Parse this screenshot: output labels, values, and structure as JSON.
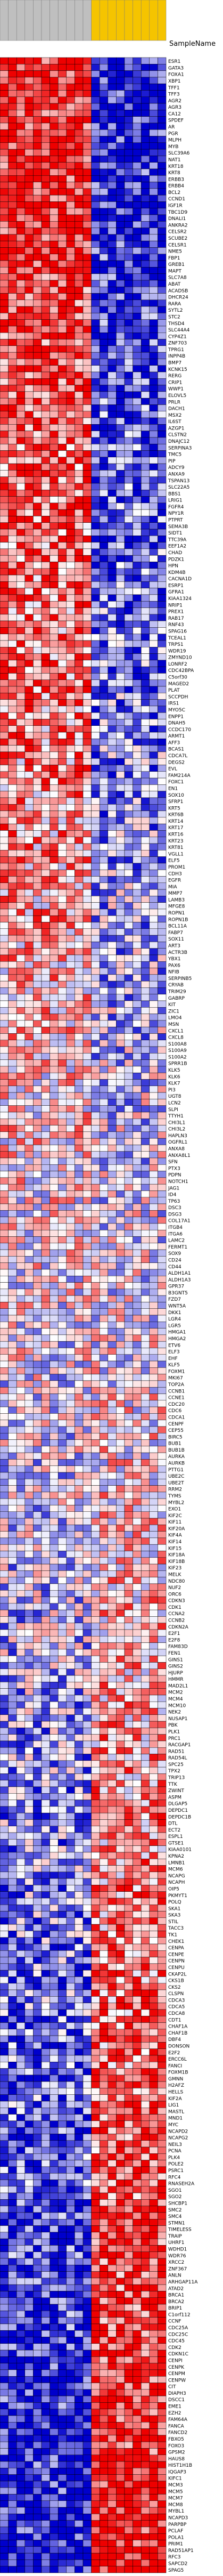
{
  "chart_data": {
    "type": "heatmap",
    "title": "",
    "header_label": "SampleName",
    "legend": "none",
    "grid": true,
    "colors": {
      "group_a_header": "#bfbfbf",
      "group_b_header": "#f5c400",
      "cell_border": "#000000",
      "low": "#0000cc",
      "mid": "#ffffff",
      "high": "#ee0000"
    },
    "columns": [
      "",
      "",
      "",
      "",
      "",
      "",
      "",
      "",
      "",
      "",
      "",
      "",
      "",
      "",
      "",
      "",
      "",
      "",
      "",
      ""
    ],
    "column_groups": [
      {
        "count": 11,
        "color": "#bfbfbf"
      },
      {
        "count": 9,
        "color": "#f5c400"
      }
    ],
    "rows": [
      {
        "label": "ESR1"
      },
      {
        "label": "GATA3"
      },
      {
        "label": "FOXA1"
      },
      {
        "label": "XBP1"
      },
      {
        "label": "TFF1"
      },
      {
        "label": "TFF3"
      },
      {
        "label": "AGR2"
      },
      {
        "label": "AGR3"
      },
      {
        "label": "CA12"
      },
      {
        "label": "SPDEF"
      },
      {
        "label": "AR"
      },
      {
        "label": "PGR"
      },
      {
        "label": "MLPH"
      },
      {
        "label": "MYB"
      },
      {
        "label": "SLC39A6"
      },
      {
        "label": "NAT1"
      },
      {
        "label": "KRT18"
      },
      {
        "label": "KRT8"
      },
      {
        "label": "ERBB3"
      },
      {
        "label": "ERBB4"
      },
      {
        "label": "BCL2"
      },
      {
        "label": "CCND1"
      },
      {
        "label": "IGF1R"
      },
      {
        "label": "TBC1D9"
      },
      {
        "label": "DNALI1"
      },
      {
        "label": "ANKRA2"
      },
      {
        "label": "CELSR2"
      },
      {
        "label": "SCUBE2"
      },
      {
        "label": "CELSR1"
      },
      {
        "label": "NME5"
      },
      {
        "label": "FBP1"
      },
      {
        "label": "GREB1"
      },
      {
        "label": "MAPT"
      },
      {
        "label": "SLC7A8"
      },
      {
        "label": "ABAT"
      },
      {
        "label": "ACADSB"
      },
      {
        "label": "DHCR24"
      },
      {
        "label": "RARA"
      },
      {
        "label": "SYTL2"
      },
      {
        "label": "STC2"
      },
      {
        "label": "THSD4"
      },
      {
        "label": "SLC44A4"
      },
      {
        "label": "CYP4Z1"
      },
      {
        "label": "ZNF703"
      },
      {
        "label": "TPRG1"
      },
      {
        "label": "INPP4B"
      },
      {
        "label": "BMP7"
      },
      {
        "label": "KCNK15"
      },
      {
        "label": "RERG"
      },
      {
        "label": "CRIP1"
      },
      {
        "label": "WWP1"
      },
      {
        "label": "ELOVL5"
      },
      {
        "label": "PRLR"
      },
      {
        "label": "DACH1"
      },
      {
        "label": "MSX2"
      },
      {
        "label": "IL6ST"
      },
      {
        "label": "AZGP1"
      },
      {
        "label": "CLSTN2"
      },
      {
        "label": "DNAJC12"
      },
      {
        "label": "SERPINA3"
      },
      {
        "label": "TMC5"
      },
      {
        "label": "PIP"
      },
      {
        "label": "ADCY9"
      },
      {
        "label": "ANXA9"
      },
      {
        "label": "TSPAN13"
      },
      {
        "label": "SLC22A5"
      },
      {
        "label": "BBS1"
      },
      {
        "label": "LRIG1"
      },
      {
        "label": "FGFR4"
      },
      {
        "label": "NPY1R"
      },
      {
        "label": "PTPRT"
      },
      {
        "label": "SEMA3B"
      },
      {
        "label": "SIDT1"
      },
      {
        "label": "TTC39A"
      },
      {
        "label": "EEF1A2"
      },
      {
        "label": "CHAD"
      },
      {
        "label": "PDZK1"
      },
      {
        "label": "HPN"
      },
      {
        "label": "KDM4B"
      },
      {
        "label": "CACNA1D"
      },
      {
        "label": "ESRP1"
      },
      {
        "label": "GFRA1"
      },
      {
        "label": "KIAA1324"
      },
      {
        "label": "NRIP1"
      },
      {
        "label": "PREX1"
      },
      {
        "label": "RAB17"
      },
      {
        "label": "RNF43"
      },
      {
        "label": "SPAG16"
      },
      {
        "label": "TCEAL1"
      },
      {
        "label": "TRPS1"
      },
      {
        "label": "WDR19"
      },
      {
        "label": "ZMYND10"
      },
      {
        "label": "LONRF2"
      },
      {
        "label": "CDC42BPA"
      },
      {
        "label": "C5orf30"
      },
      {
        "label": "MAGED2"
      },
      {
        "label": "PLAT"
      },
      {
        "label": "SCCPDH"
      },
      {
        "label": "IRS1"
      },
      {
        "label": "MYO5C"
      },
      {
        "label": "ENPP1"
      },
      {
        "label": "DNAH5"
      },
      {
        "label": "CCDC170"
      },
      {
        "label": "ARMT1"
      },
      {
        "label": "AFF3"
      },
      {
        "label": "BCAS1"
      },
      {
        "label": "CDCA7L"
      },
      {
        "label": "DEGS2"
      },
      {
        "label": "EVL"
      },
      {
        "label": "FAM214A"
      },
      {
        "label": "FOXC1"
      },
      {
        "label": "EN1"
      },
      {
        "label": "SOX10"
      },
      {
        "label": "SFRP1"
      },
      {
        "label": "KRT5"
      },
      {
        "label": "KRT6B"
      },
      {
        "label": "KRT14"
      },
      {
        "label": "KRT17"
      },
      {
        "label": "KRT16"
      },
      {
        "label": "KRT23"
      },
      {
        "label": "KRT81"
      },
      {
        "label": "VGLL1"
      },
      {
        "label": "ELF5"
      },
      {
        "label": "PROM1"
      },
      {
        "label": "CDH3"
      },
      {
        "label": "EGFR"
      },
      {
        "label": "MIA"
      },
      {
        "label": "MMP7"
      },
      {
        "label": "LAMB3"
      },
      {
        "label": "MFGE8"
      },
      {
        "label": "ROPN1"
      },
      {
        "label": "ROPN1B"
      },
      {
        "label": "BCL11A"
      },
      {
        "label": "FABP7"
      },
      {
        "label": "SOX11"
      },
      {
        "label": "ART3"
      },
      {
        "label": "ACTR3B"
      },
      {
        "label": "YBX1"
      },
      {
        "label": "PAX6"
      },
      {
        "label": "NFIB"
      },
      {
        "label": "SERPINB5"
      },
      {
        "label": "CRYAB"
      },
      {
        "label": "TRIM29"
      },
      {
        "label": "GABRP"
      },
      {
        "label": "KIT"
      },
      {
        "label": "ZIC1"
      },
      {
        "label": "LMO4"
      },
      {
        "label": "MSN"
      },
      {
        "label": "CXCL1"
      },
      {
        "label": "CXCL8"
      },
      {
        "label": "S100A8"
      },
      {
        "label": "S100A9"
      },
      {
        "label": "S100A2"
      },
      {
        "label": "SPRR1B"
      },
      {
        "label": "KLK5"
      },
      {
        "label": "KLK6"
      },
      {
        "label": "KLK7"
      },
      {
        "label": "PI3"
      },
      {
        "label": "UGT8"
      },
      {
        "label": "LCN2"
      },
      {
        "label": "SLPI"
      },
      {
        "label": "TTYH1"
      },
      {
        "label": "CHI3L1"
      },
      {
        "label": "CHI3L2"
      },
      {
        "label": "HAPLN3"
      },
      {
        "label": "OGFRL1"
      },
      {
        "label": "ANXA8"
      },
      {
        "label": "ANXA8L1"
      },
      {
        "label": "SFN"
      },
      {
        "label": "PTX3"
      },
      {
        "label": "PDPN"
      },
      {
        "label": "NOTCH1"
      },
      {
        "label": "JAG1"
      },
      {
        "label": "ID4"
      },
      {
        "label": "TP63"
      },
      {
        "label": "DSC3"
      },
      {
        "label": "DSG3"
      },
      {
        "label": "COL17A1"
      },
      {
        "label": "ITGB4"
      },
      {
        "label": "ITGA6"
      },
      {
        "label": "LAMC2"
      },
      {
        "label": "FERMT1"
      },
      {
        "label": "SOX9"
      },
      {
        "label": "CD24"
      },
      {
        "label": "CD44"
      },
      {
        "label": "ALDH1A1"
      },
      {
        "label": "ALDH1A3"
      },
      {
        "label": "GPR37"
      },
      {
        "label": "B3GNT5"
      },
      {
        "label": "FZD7"
      },
      {
        "label": "WNT5A"
      },
      {
        "label": "DKK1"
      },
      {
        "label": "LGR4"
      },
      {
        "label": "LGR5"
      },
      {
        "label": "HMGA1"
      },
      {
        "label": "HMGA2"
      },
      {
        "label": "ETV6"
      },
      {
        "label": "ELF3"
      },
      {
        "label": "EHF"
      },
      {
        "label": "KLF5"
      },
      {
        "label": "FOXM1"
      },
      {
        "label": "MKI67"
      },
      {
        "label": "TOP2A"
      },
      {
        "label": "CCNB1"
      },
      {
        "label": "CCNE1"
      },
      {
        "label": "CDC20"
      },
      {
        "label": "CDC6"
      },
      {
        "label": "CDCA1"
      },
      {
        "label": "CENPF"
      },
      {
        "label": "CEP55"
      },
      {
        "label": "BIRC5"
      },
      {
        "label": "BUB1"
      },
      {
        "label": "BUB1B"
      },
      {
        "label": "AURKA"
      },
      {
        "label": "AURKB"
      },
      {
        "label": "PTTG1"
      },
      {
        "label": "UBE2C"
      },
      {
        "label": "UBE2T"
      },
      {
        "label": "RRM2"
      },
      {
        "label": "TYMS"
      },
      {
        "label": "MYBL2"
      },
      {
        "label": "EXO1"
      },
      {
        "label": "KIF2C"
      },
      {
        "label": "KIF11"
      },
      {
        "label": "KIF20A"
      },
      {
        "label": "KIF4A"
      },
      {
        "label": "KIF14"
      },
      {
        "label": "KIF15"
      },
      {
        "label": "KIF18A"
      },
      {
        "label": "KIF18B"
      },
      {
        "label": "KIF23"
      },
      {
        "label": "MELK"
      },
      {
        "label": "NDC80"
      },
      {
        "label": "NUF2"
      },
      {
        "label": "ORC6"
      },
      {
        "label": "CDKN3"
      },
      {
        "label": "CDK1"
      },
      {
        "label": "CCNA2"
      },
      {
        "label": "CCNB2"
      },
      {
        "label": "CDKN2A"
      },
      {
        "label": "E2F1"
      },
      {
        "label": "E2F8"
      },
      {
        "label": "FAM83D"
      },
      {
        "label": "FEN1"
      },
      {
        "label": "GINS1"
      },
      {
        "label": "GINS2"
      },
      {
        "label": "HJURP"
      },
      {
        "label": "HMMR"
      },
      {
        "label": "MAD2L1"
      },
      {
        "label": "MCM2"
      },
      {
        "label": "MCM4"
      },
      {
        "label": "MCM10"
      },
      {
        "label": "NEK2"
      },
      {
        "label": "NUSAP1"
      },
      {
        "label": "PBK"
      },
      {
        "label": "PLK1"
      },
      {
        "label": "PRC1"
      },
      {
        "label": "RACGAP1"
      },
      {
        "label": "RAD51"
      },
      {
        "label": "RAD54L"
      },
      {
        "label": "SPC25"
      },
      {
        "label": "TPX2"
      },
      {
        "label": "TRIP13"
      },
      {
        "label": "TTK"
      },
      {
        "label": "ZWINT"
      },
      {
        "label": "ASPM"
      },
      {
        "label": "DLGAP5"
      },
      {
        "label": "DEPDC1"
      },
      {
        "label": "DEPDC1B"
      },
      {
        "label": "DTL"
      },
      {
        "label": "ECT2"
      },
      {
        "label": "ESPL1"
      },
      {
        "label": "GTSE1"
      },
      {
        "label": "KIAA0101"
      },
      {
        "label": "KPNA2"
      },
      {
        "label": "LMNB1"
      },
      {
        "label": "MCM6"
      },
      {
        "label": "NCAPG"
      },
      {
        "label": "NCAPH"
      },
      {
        "label": "OIP5"
      },
      {
        "label": "PKMYT1"
      },
      {
        "label": "POLQ"
      },
      {
        "label": "SKA1"
      },
      {
        "label": "SKA3"
      },
      {
        "label": "STIL"
      },
      {
        "label": "TACC3"
      },
      {
        "label": "TK1"
      },
      {
        "label": "CHEK1"
      },
      {
        "label": "CENPA"
      },
      {
        "label": "CENPE"
      },
      {
        "label": "CENPN"
      },
      {
        "label": "CENPU"
      },
      {
        "label": "CKAP2L"
      },
      {
        "label": "CKS1B"
      },
      {
        "label": "CKS2"
      },
      {
        "label": "CLSPN"
      },
      {
        "label": "CDCA3"
      },
      {
        "label": "CDCA5"
      },
      {
        "label": "CDCA8"
      },
      {
        "label": "CDT1"
      },
      {
        "label": "CHAF1A"
      },
      {
        "label": "CHAF1B"
      },
      {
        "label": "DBF4"
      },
      {
        "label": "DONSON"
      },
      {
        "label": "E2F2"
      },
      {
        "label": "ERCC6L"
      },
      {
        "label": "FANCI"
      },
      {
        "label": "FOXM1B"
      },
      {
        "label": "GMNN"
      },
      {
        "label": "H2AFZ"
      },
      {
        "label": "HELLS"
      },
      {
        "label": "KIF2A"
      },
      {
        "label": "LIG1"
      },
      {
        "label": "MASTL"
      },
      {
        "label": "MND1"
      },
      {
        "label": "MYC"
      },
      {
        "label": "NCAPD2"
      },
      {
        "label": "NCAPG2"
      },
      {
        "label": "NEIL3"
      },
      {
        "label": "PCNA"
      },
      {
        "label": "PLK4"
      },
      {
        "label": "POLE2"
      },
      {
        "label": "PSRC1"
      },
      {
        "label": "RFC4"
      },
      {
        "label": "RNASEH2A"
      },
      {
        "label": "SGO1"
      },
      {
        "label": "SGO2"
      },
      {
        "label": "SHCBP1"
      },
      {
        "label": "SMC2"
      },
      {
        "label": "SMC4"
      },
      {
        "label": "STMN1"
      },
      {
        "label": "TIMELESS"
      },
      {
        "label": "TRAIP"
      },
      {
        "label": "UHRF1"
      },
      {
        "label": "WDHD1"
      },
      {
        "label": "WDR76"
      },
      {
        "label": "XRCC2"
      },
      {
        "label": "ZNF367"
      },
      {
        "label": "ANLN"
      },
      {
        "label": "ARHGAP11A"
      },
      {
        "label": "ATAD2"
      },
      {
        "label": "BRCA1"
      },
      {
        "label": "BRCA2"
      },
      {
        "label": "BRIP1"
      },
      {
        "label": "C1orf112"
      },
      {
        "label": "CCNF"
      },
      {
        "label": "CDC25A"
      },
      {
        "label": "CDC25C"
      },
      {
        "label": "CDC45"
      },
      {
        "label": "CDK2"
      },
      {
        "label": "CDKN1C"
      },
      {
        "label": "CENPI"
      },
      {
        "label": "CENPK"
      },
      {
        "label": "CENPM"
      },
      {
        "label": "CENPW"
      },
      {
        "label": "CIT"
      },
      {
        "label": "DIAPH3"
      },
      {
        "label": "DSCC1"
      },
      {
        "label": "EME1"
      },
      {
        "label": "EZH2"
      },
      {
        "label": "FAM64A"
      },
      {
        "label": "FANCA"
      },
      {
        "label": "FANCD2"
      },
      {
        "label": "FBXO5"
      },
      {
        "label": "FOXO3"
      },
      {
        "label": "GPSM2"
      },
      {
        "label": "HAUS8"
      },
      {
        "label": "HIST1H1B"
      },
      {
        "label": "IQGAP3"
      },
      {
        "label": "KIFC1"
      },
      {
        "label": "MCM3"
      },
      {
        "label": "MCM5"
      },
      {
        "label": "MCM7"
      },
      {
        "label": "MCM8"
      },
      {
        "label": "MYBL1"
      },
      {
        "label": "NCAPD3"
      },
      {
        "label": "PARPBP"
      },
      {
        "label": "PCLAF"
      },
      {
        "label": "POLA1"
      },
      {
        "label": "PRIM1"
      },
      {
        "label": "RAD51AP1"
      },
      {
        "label": "RFC3"
      },
      {
        "label": "SAPCD2"
      },
      {
        "label": "SPAG5"
      }
    ]
  }
}
